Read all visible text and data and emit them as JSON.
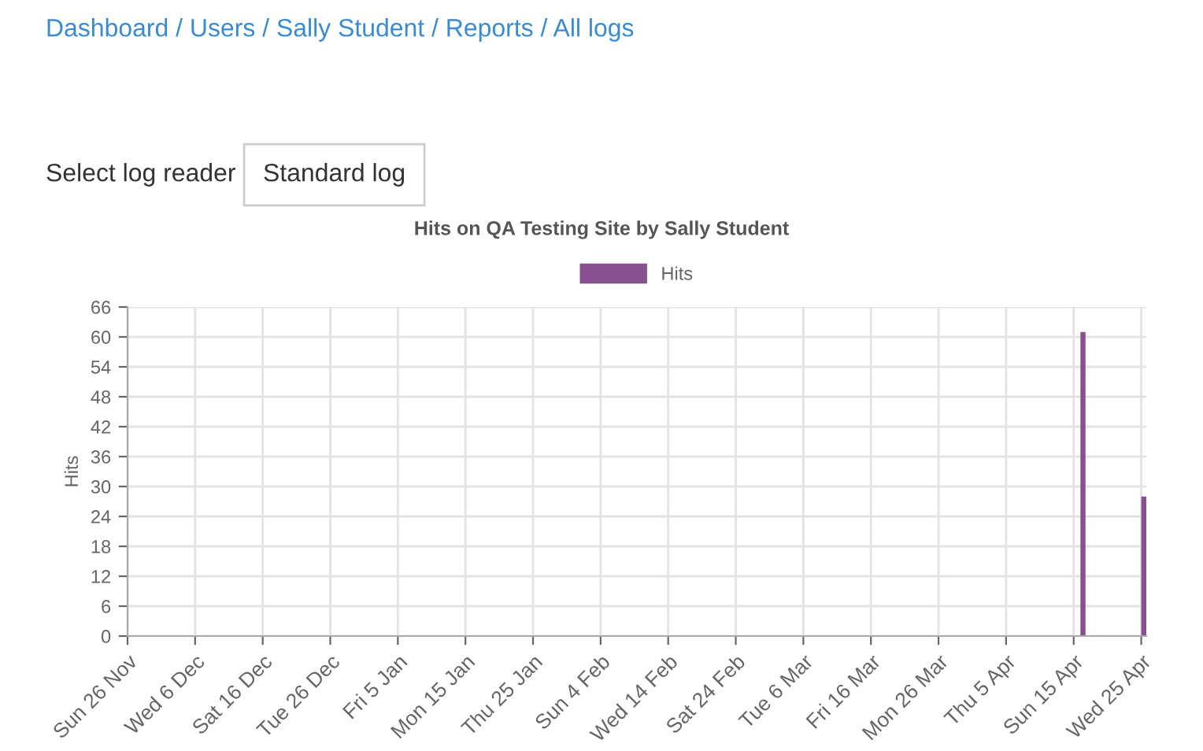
{
  "chart_data": {
    "type": "bar",
    "title": "Hits on QA Testing Site by Sally Student",
    "ylabel": "Hits",
    "annotations": [
      "Dashboard / Users / Sally Student / Reports / All logs",
      "Select log reader",
      "Standard log"
    ],
    "categories": [
      "Sun 26 Nov",
      null,
      null,
      null,
      null,
      null,
      null,
      null,
      null,
      null,
      "Wed 6 Dec",
      null,
      null,
      null,
      null,
      null,
      null,
      null,
      null,
      null,
      "Sat 16 Dec",
      null,
      null,
      null,
      null,
      null,
      null,
      null,
      null,
      null,
      "Tue 26 Dec",
      null,
      null,
      null,
      null,
      null,
      null,
      null,
      null,
      null,
      "Fri 5 Jan",
      null,
      null,
      null,
      null,
      null,
      null,
      null,
      null,
      null,
      "Mon 15 Jan",
      null,
      null,
      null,
      null,
      null,
      null,
      null,
      null,
      null,
      "Thu 25 Jan",
      null,
      null,
      null,
      null,
      null,
      null,
      null,
      null,
      null,
      "Sun 4 Feb",
      null,
      null,
      null,
      null,
      null,
      null,
      null,
      null,
      null,
      "Wed 14 Feb",
      null,
      null,
      null,
      null,
      null,
      null,
      null,
      null,
      null,
      "Sat 24 Feb",
      null,
      null,
      null,
      null,
      null,
      null,
      null,
      null,
      null,
      "Tue 6 Mar",
      null,
      null,
      null,
      null,
      null,
      null,
      null,
      null,
      null,
      "Fri 16 Mar",
      null,
      null,
      null,
      null,
      null,
      null,
      null,
      null,
      null,
      "Mon 26 Mar",
      null,
      null,
      null,
      null,
      null,
      null,
      null,
      null,
      null,
      "Thu 5 Apr",
      null,
      null,
      null,
      null,
      null,
      null,
      null,
      null,
      null,
      "Sun 15 Apr",
      null,
      null,
      null,
      null,
      null,
      null,
      null,
      null,
      null,
      "Wed 25 Apr"
    ],
    "series": [
      {
        "name": "Hits",
        "color": "#88508f",
        "values": [
          0,
          0,
          0,
          0,
          0,
          0,
          0,
          0,
          0,
          0,
          0,
          0,
          0,
          0,
          0,
          0,
          0,
          0,
          0,
          0,
          0,
          0,
          0,
          0,
          0,
          0,
          0,
          0,
          0,
          0,
          0,
          0,
          0,
          0,
          0,
          0,
          0,
          0,
          0,
          0,
          0,
          0,
          0,
          0,
          0,
          0,
          0,
          0,
          0,
          0,
          0,
          0,
          0,
          0,
          0,
          0,
          0,
          0,
          0,
          0,
          0,
          0,
          0,
          0,
          0,
          0,
          0,
          0,
          0,
          0,
          0,
          0,
          0,
          0,
          0,
          0,
          0,
          0,
          0,
          0,
          0,
          0,
          0,
          0,
          0,
          0,
          0,
          0,
          0,
          0,
          0,
          0,
          0,
          0,
          0,
          0,
          0,
          0,
          0,
          0,
          0,
          0,
          0,
          0,
          0,
          0,
          0,
          0,
          0,
          0,
          0,
          0,
          0,
          0,
          0,
          0,
          0,
          0,
          0,
          0,
          0,
          0,
          0,
          0,
          0,
          0,
          0,
          0,
          0,
          0,
          0,
          0,
          0,
          0,
          0,
          0,
          0,
          0,
          0,
          0,
          0,
          61,
          0,
          0,
          0,
          0,
          0,
          0,
          0,
          0,
          28
        ]
      }
    ],
    "ylim": [
      0,
      66
    ],
    "yticks": [
      0,
      6,
      12,
      18,
      24,
      30,
      36,
      42,
      48,
      54,
      60,
      66
    ],
    "grid": true,
    "legend": "top"
  }
}
